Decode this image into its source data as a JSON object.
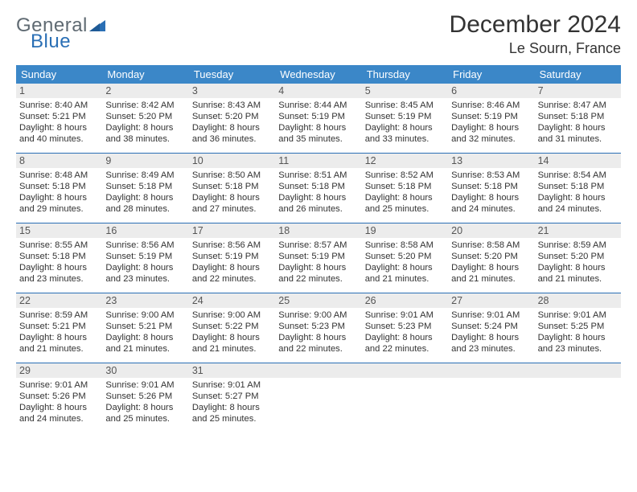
{
  "logo": {
    "part1": "General",
    "part2": "Blue"
  },
  "title": "December 2024",
  "subtitle": "Le Sourn, France",
  "colors": {
    "header_bg": "#3b87c8",
    "rule": "#2a6fb5",
    "daynum_bg": "#ececec",
    "text": "#333333",
    "logo_gray": "#5f6a72",
    "logo_blue": "#2a6fb5"
  },
  "dow": [
    "Sunday",
    "Monday",
    "Tuesday",
    "Wednesday",
    "Thursday",
    "Friday",
    "Saturday"
  ],
  "weeks": [
    [
      {
        "n": "1",
        "sr": "Sunrise: 8:40 AM",
        "ss": "Sunset: 5:21 PM",
        "d1": "Daylight: 8 hours",
        "d2": "and 40 minutes."
      },
      {
        "n": "2",
        "sr": "Sunrise: 8:42 AM",
        "ss": "Sunset: 5:20 PM",
        "d1": "Daylight: 8 hours",
        "d2": "and 38 minutes."
      },
      {
        "n": "3",
        "sr": "Sunrise: 8:43 AM",
        "ss": "Sunset: 5:20 PM",
        "d1": "Daylight: 8 hours",
        "d2": "and 36 minutes."
      },
      {
        "n": "4",
        "sr": "Sunrise: 8:44 AM",
        "ss": "Sunset: 5:19 PM",
        "d1": "Daylight: 8 hours",
        "d2": "and 35 minutes."
      },
      {
        "n": "5",
        "sr": "Sunrise: 8:45 AM",
        "ss": "Sunset: 5:19 PM",
        "d1": "Daylight: 8 hours",
        "d2": "and 33 minutes."
      },
      {
        "n": "6",
        "sr": "Sunrise: 8:46 AM",
        "ss": "Sunset: 5:19 PM",
        "d1": "Daylight: 8 hours",
        "d2": "and 32 minutes."
      },
      {
        "n": "7",
        "sr": "Sunrise: 8:47 AM",
        "ss": "Sunset: 5:18 PM",
        "d1": "Daylight: 8 hours",
        "d2": "and 31 minutes."
      }
    ],
    [
      {
        "n": "8",
        "sr": "Sunrise: 8:48 AM",
        "ss": "Sunset: 5:18 PM",
        "d1": "Daylight: 8 hours",
        "d2": "and 29 minutes."
      },
      {
        "n": "9",
        "sr": "Sunrise: 8:49 AM",
        "ss": "Sunset: 5:18 PM",
        "d1": "Daylight: 8 hours",
        "d2": "and 28 minutes."
      },
      {
        "n": "10",
        "sr": "Sunrise: 8:50 AM",
        "ss": "Sunset: 5:18 PM",
        "d1": "Daylight: 8 hours",
        "d2": "and 27 minutes."
      },
      {
        "n": "11",
        "sr": "Sunrise: 8:51 AM",
        "ss": "Sunset: 5:18 PM",
        "d1": "Daylight: 8 hours",
        "d2": "and 26 minutes."
      },
      {
        "n": "12",
        "sr": "Sunrise: 8:52 AM",
        "ss": "Sunset: 5:18 PM",
        "d1": "Daylight: 8 hours",
        "d2": "and 25 minutes."
      },
      {
        "n": "13",
        "sr": "Sunrise: 8:53 AM",
        "ss": "Sunset: 5:18 PM",
        "d1": "Daylight: 8 hours",
        "d2": "and 24 minutes."
      },
      {
        "n": "14",
        "sr": "Sunrise: 8:54 AM",
        "ss": "Sunset: 5:18 PM",
        "d1": "Daylight: 8 hours",
        "d2": "and 24 minutes."
      }
    ],
    [
      {
        "n": "15",
        "sr": "Sunrise: 8:55 AM",
        "ss": "Sunset: 5:18 PM",
        "d1": "Daylight: 8 hours",
        "d2": "and 23 minutes."
      },
      {
        "n": "16",
        "sr": "Sunrise: 8:56 AM",
        "ss": "Sunset: 5:19 PM",
        "d1": "Daylight: 8 hours",
        "d2": "and 23 minutes."
      },
      {
        "n": "17",
        "sr": "Sunrise: 8:56 AM",
        "ss": "Sunset: 5:19 PM",
        "d1": "Daylight: 8 hours",
        "d2": "and 22 minutes."
      },
      {
        "n": "18",
        "sr": "Sunrise: 8:57 AM",
        "ss": "Sunset: 5:19 PM",
        "d1": "Daylight: 8 hours",
        "d2": "and 22 minutes."
      },
      {
        "n": "19",
        "sr": "Sunrise: 8:58 AM",
        "ss": "Sunset: 5:20 PM",
        "d1": "Daylight: 8 hours",
        "d2": "and 21 minutes."
      },
      {
        "n": "20",
        "sr": "Sunrise: 8:58 AM",
        "ss": "Sunset: 5:20 PM",
        "d1": "Daylight: 8 hours",
        "d2": "and 21 minutes."
      },
      {
        "n": "21",
        "sr": "Sunrise: 8:59 AM",
        "ss": "Sunset: 5:20 PM",
        "d1": "Daylight: 8 hours",
        "d2": "and 21 minutes."
      }
    ],
    [
      {
        "n": "22",
        "sr": "Sunrise: 8:59 AM",
        "ss": "Sunset: 5:21 PM",
        "d1": "Daylight: 8 hours",
        "d2": "and 21 minutes."
      },
      {
        "n": "23",
        "sr": "Sunrise: 9:00 AM",
        "ss": "Sunset: 5:21 PM",
        "d1": "Daylight: 8 hours",
        "d2": "and 21 minutes."
      },
      {
        "n": "24",
        "sr": "Sunrise: 9:00 AM",
        "ss": "Sunset: 5:22 PM",
        "d1": "Daylight: 8 hours",
        "d2": "and 21 minutes."
      },
      {
        "n": "25",
        "sr": "Sunrise: 9:00 AM",
        "ss": "Sunset: 5:23 PM",
        "d1": "Daylight: 8 hours",
        "d2": "and 22 minutes."
      },
      {
        "n": "26",
        "sr": "Sunrise: 9:01 AM",
        "ss": "Sunset: 5:23 PM",
        "d1": "Daylight: 8 hours",
        "d2": "and 22 minutes."
      },
      {
        "n": "27",
        "sr": "Sunrise: 9:01 AM",
        "ss": "Sunset: 5:24 PM",
        "d1": "Daylight: 8 hours",
        "d2": "and 23 minutes."
      },
      {
        "n": "28",
        "sr": "Sunrise: 9:01 AM",
        "ss": "Sunset: 5:25 PM",
        "d1": "Daylight: 8 hours",
        "d2": "and 23 minutes."
      }
    ],
    [
      {
        "n": "29",
        "sr": "Sunrise: 9:01 AM",
        "ss": "Sunset: 5:26 PM",
        "d1": "Daylight: 8 hours",
        "d2": "and 24 minutes."
      },
      {
        "n": "30",
        "sr": "Sunrise: 9:01 AM",
        "ss": "Sunset: 5:26 PM",
        "d1": "Daylight: 8 hours",
        "d2": "and 25 minutes."
      },
      {
        "n": "31",
        "sr": "Sunrise: 9:01 AM",
        "ss": "Sunset: 5:27 PM",
        "d1": "Daylight: 8 hours",
        "d2": "and 25 minutes."
      },
      {
        "empty": true
      },
      {
        "empty": true
      },
      {
        "empty": true
      },
      {
        "empty": true
      }
    ]
  ]
}
